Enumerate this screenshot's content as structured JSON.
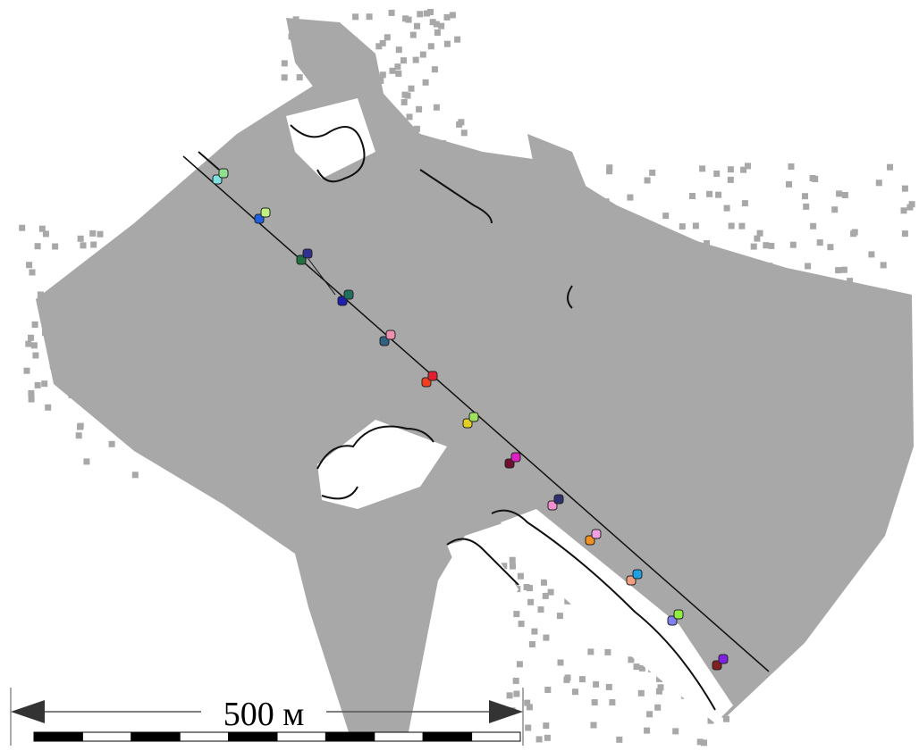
{
  "scale_bar": {
    "label": "500 м"
  }
}
